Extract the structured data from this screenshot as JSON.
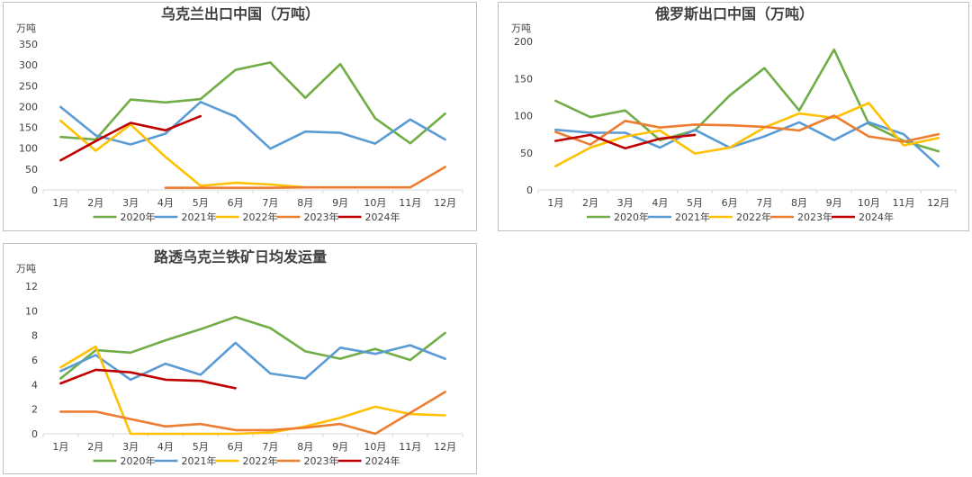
{
  "colors": {
    "2020年": "#70ad47",
    "2021年": "#5b9bd5",
    "2022年": "#ffc000",
    "2023年": "#ed7d31",
    "2024年": "#c00000"
  },
  "chart_data": [
    {
      "type": "line",
      "title": "乌克兰出口中国（万吨）",
      "unit_label": "万吨",
      "ylim": [
        0,
        350
      ],
      "yticks": [
        0,
        50,
        100,
        150,
        200,
        250,
        300,
        350
      ],
      "categories": [
        "1月",
        "2月",
        "3月",
        "4月",
        "5月",
        "6月",
        "7月",
        "8月",
        "9月",
        "10月",
        "11月",
        "12月"
      ],
      "legend_position": "bottom",
      "series": [
        {
          "name": "2020年",
          "values": [
            127,
            121,
            217,
            210,
            218,
            288,
            306,
            221,
            302,
            172,
            112,
            183
          ]
        },
        {
          "name": "2021年",
          "values": [
            199,
            131,
            109,
            135,
            211,
            176,
            99,
            140,
            137,
            111,
            169,
            121
          ]
        },
        {
          "name": "2022年",
          "values": [
            166,
            94,
            157,
            79,
            10,
            17,
            13,
            6,
            null,
            null,
            null,
            null
          ]
        },
        {
          "name": "2023年",
          "values": [
            null,
            null,
            null,
            5,
            5,
            5,
            5,
            6,
            6,
            6,
            6,
            55
          ]
        },
        {
          "name": "2024年",
          "values": [
            71,
            117,
            161,
            143,
            177,
            null,
            null,
            null,
            null,
            null,
            null,
            null
          ]
        }
      ]
    },
    {
      "type": "line",
      "title": "俄罗斯出口中国（万吨）",
      "unit_label": "万吨",
      "ylim": [
        0,
        200
      ],
      "yticks": [
        0,
        50,
        100,
        150,
        200
      ],
      "categories": [
        "1月",
        "2月",
        "3月",
        "4月",
        "5月",
        "6月",
        "7月",
        "8月",
        "9月",
        "10月",
        "11月",
        "12月"
      ],
      "legend_position": "bottom",
      "series": [
        {
          "name": "2020年",
          "values": [
            120,
            98,
            107,
            67,
            80,
            127,
            164,
            107,
            189,
            89,
            66,
            52
          ]
        },
        {
          "name": "2021年",
          "values": [
            81,
            77,
            77,
            57,
            81,
            57,
            72,
            91,
            67,
            91,
            75,
            32
          ]
        },
        {
          "name": "2022年",
          "values": [
            32,
            57,
            72,
            80,
            49,
            57,
            84,
            103,
            97,
            117,
            60,
            70
          ]
        },
        {
          "name": "2023年",
          "values": [
            78,
            61,
            93,
            84,
            88,
            87,
            85,
            80,
            100,
            72,
            65,
            75
          ]
        },
        {
          "name": "2024年",
          "values": [
            66,
            74,
            56,
            69,
            74,
            null,
            null,
            null,
            null,
            null,
            null,
            null
          ]
        }
      ]
    },
    {
      "type": "line",
      "title": "路透乌克兰铁矿日均发运量",
      "unit_label": "万吨",
      "ylim": [
        0,
        12
      ],
      "yticks": [
        0,
        2,
        4,
        6,
        8,
        10,
        12
      ],
      "categories": [
        "1月",
        "2月",
        "3月",
        "4月",
        "5月",
        "6月",
        "7月",
        "8月",
        "9月",
        "10月",
        "11月",
        "12月"
      ],
      "legend_position": "bottom",
      "series": [
        {
          "name": "2020年",
          "values": [
            4.5,
            6.8,
            6.6,
            7.6,
            8.5,
            9.5,
            8.6,
            6.7,
            6.1,
            6.9,
            6.0,
            8.2
          ]
        },
        {
          "name": "2021年",
          "values": [
            5.1,
            6.4,
            4.4,
            5.7,
            4.8,
            7.4,
            4.9,
            4.5,
            7.0,
            6.5,
            7.2,
            6.1
          ]
        },
        {
          "name": "2022年",
          "values": [
            5.4,
            7.1,
            0,
            0,
            0,
            0,
            0.1,
            0.6,
            1.3,
            2.2,
            1.6,
            1.5
          ]
        },
        {
          "name": "2023年",
          "values": [
            1.8,
            1.8,
            1.2,
            0.6,
            0.8,
            0.3,
            0.3,
            0.5,
            0.8,
            0,
            1.7,
            3.4
          ]
        },
        {
          "name": "2024年",
          "values": [
            4.1,
            5.2,
            5.0,
            4.4,
            4.3,
            3.7,
            null,
            null,
            null,
            null,
            null,
            null
          ]
        }
      ]
    }
  ]
}
